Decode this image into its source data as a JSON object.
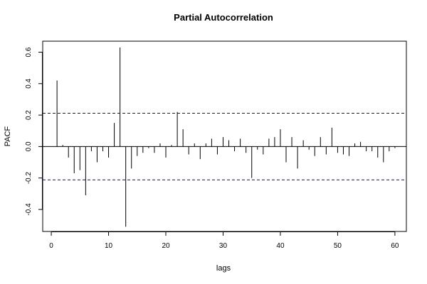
{
  "chart_data": {
    "type": "bar",
    "title": "Partial Autocorrelation",
    "xlabel": "lags",
    "ylabel": "PACF",
    "xlim": [
      -1.5,
      62
    ],
    "ylim": [
      -0.54,
      0.67
    ],
    "xticks": [
      0,
      10,
      20,
      30,
      40,
      50,
      60
    ],
    "yticks": [
      -0.4,
      -0.2,
      0.0,
      0.2,
      0.4,
      0.6
    ],
    "ytick_labels": [
      "-0.4",
      "-0.2",
      "0.0",
      "0.2",
      "0.4",
      "0.6"
    ],
    "confidence_bound": 0.212,
    "zero_line": true,
    "grid": false,
    "legend": "none",
    "colors": {
      "bar": "#000000",
      "confidence": "#0000ff",
      "axis": "#000000"
    },
    "x": [
      1,
      2,
      3,
      4,
      5,
      6,
      7,
      8,
      9,
      10,
      11,
      12,
      13,
      14,
      15,
      16,
      17,
      18,
      19,
      20,
      21,
      22,
      23,
      24,
      25,
      26,
      27,
      28,
      29,
      30,
      31,
      32,
      33,
      34,
      35,
      36,
      37,
      38,
      39,
      40,
      41,
      42,
      43,
      44,
      45,
      46,
      47,
      48,
      49,
      50,
      51,
      52,
      53,
      54,
      55,
      56,
      57,
      58,
      59,
      60
    ],
    "values": [
      0.42,
      0.01,
      -0.07,
      -0.17,
      -0.15,
      -0.31,
      -0.03,
      -0.1,
      -0.03,
      -0.07,
      0.15,
      0.63,
      -0.51,
      -0.14,
      -0.06,
      -0.04,
      -0.01,
      -0.04,
      0.02,
      -0.07,
      0.01,
      0.22,
      0.11,
      -0.05,
      0.02,
      -0.08,
      0.02,
      0.05,
      -0.05,
      0.06,
      0.04,
      -0.03,
      0.05,
      -0.04,
      -0.2,
      -0.02,
      -0.05,
      0.05,
      0.06,
      0.11,
      -0.1,
      0.06,
      -0.14,
      0.04,
      -0.02,
      -0.06,
      0.06,
      -0.05,
      0.12,
      -0.04,
      -0.05,
      -0.06,
      0.02,
      0.03,
      -0.03,
      -0.03,
      -0.07,
      -0.1,
      -0.03,
      -0.01
    ]
  }
}
